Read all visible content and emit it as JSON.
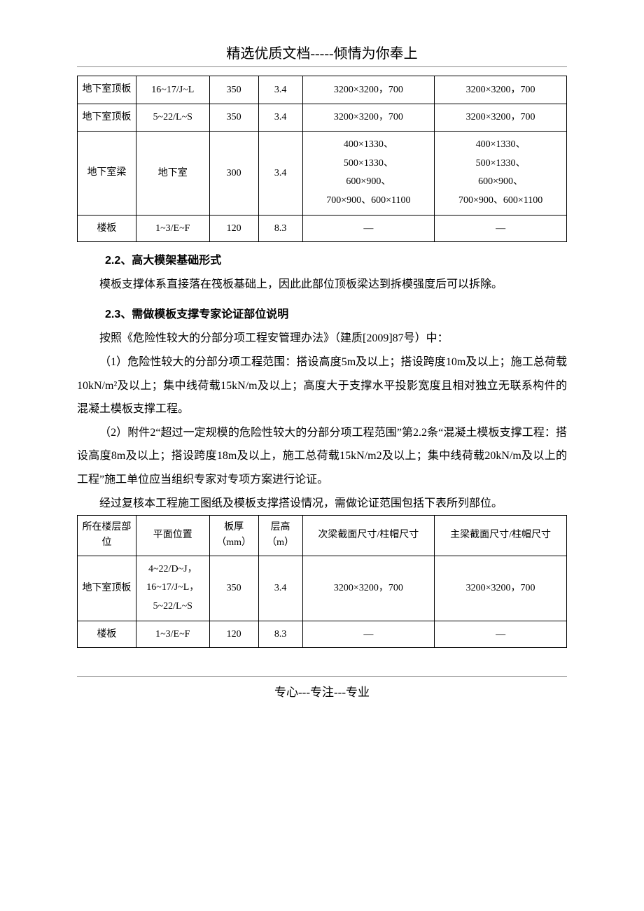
{
  "header": {
    "title": "精选优质文档-----倾情为你奉上"
  },
  "table1": {
    "rows": [
      {
        "c1": "地下室顶板",
        "c2": "16~17/J~L",
        "c3": "350",
        "c4": "3.4",
        "c5": "3200×3200，700",
        "c6": "3200×3200，700"
      },
      {
        "c1": "地下室顶板",
        "c2": "5~22/L~S",
        "c3": "350",
        "c4": "3.4",
        "c5": "3200×3200，700",
        "c6": "3200×3200，700"
      },
      {
        "c1": "地下室梁",
        "c2": "地下室",
        "c3": "300",
        "c4": "3.4",
        "c5": "400×1330、\n500×1330、\n600×900、\n700×900、600×1100",
        "c6": "400×1330、\n500×1330、\n600×900、\n700×900、600×1100"
      },
      {
        "c1": "楼板",
        "c2": "1~3/E~F",
        "c3": "120",
        "c4": "8.3",
        "c5": "—",
        "c6": "—"
      }
    ]
  },
  "section22": {
    "heading": "2.2、高大模架基础形式",
    "p1": "模板支撑体系直接落在筏板基础上，因此此部位顶板梁达到拆模强度后可以拆除。"
  },
  "section23": {
    "heading": "2.3、需做模板支撑专家论证部位说明",
    "p1": "按照《危险性较大的分部分项工程安管理办法》（建质[2009]87号）中：",
    "p2": "（1）危险性较大的分部分项工程范围：搭设高度5m及以上；搭设跨度10m及以上；施工总荷载10kN/m²及以上；集中线荷载15kN/m及以上；高度大于支撑水平投影宽度且相对独立无联系构件的混凝土模板支撑工程。",
    "p3": "（2）附件2“超过一定规模的危险性较大的分部分项工程范围”第2.2条“混凝土模板支撑工程：搭设高度8m及以上；搭设跨度18m及以上，施工总荷载15kN/m2及以上；集中线荷载20kN/m及以上的工程”施工单位应当组织专家对专项方案进行论证。",
    "p4": "经过复核本工程施工图纸及模板支撑搭设情况，需做论证范围包括下表所列部位。"
  },
  "table2": {
    "header": {
      "c1": "所在楼层部位",
      "c2": "平面位置",
      "c3": "板厚（mm）",
      "c4": "层高（m）",
      "c5": "次梁截面尺寸/柱帽尺寸",
      "c6": "主梁截面尺寸/柱帽尺寸"
    },
    "rows": [
      {
        "c1": "地下室顶板",
        "c2": "4~22/D~J，\n16~17/J~L，\n5~22/L~S",
        "c3": "350",
        "c4": "3.4",
        "c5": "3200×3200，700",
        "c6": "3200×3200，700"
      },
      {
        "c1": "楼板",
        "c2": "1~3/E~F",
        "c3": "120",
        "c4": "8.3",
        "c5": "—",
        "c6": "—"
      }
    ]
  },
  "footer": {
    "text": "专心---专注---专业"
  },
  "styles": {
    "text_color": "#000000",
    "border_color": "#000000",
    "underline_color": "#888888",
    "background": "#ffffff",
    "body_fontsize": 16,
    "table_fontsize": 14,
    "header_fontsize": 20
  }
}
